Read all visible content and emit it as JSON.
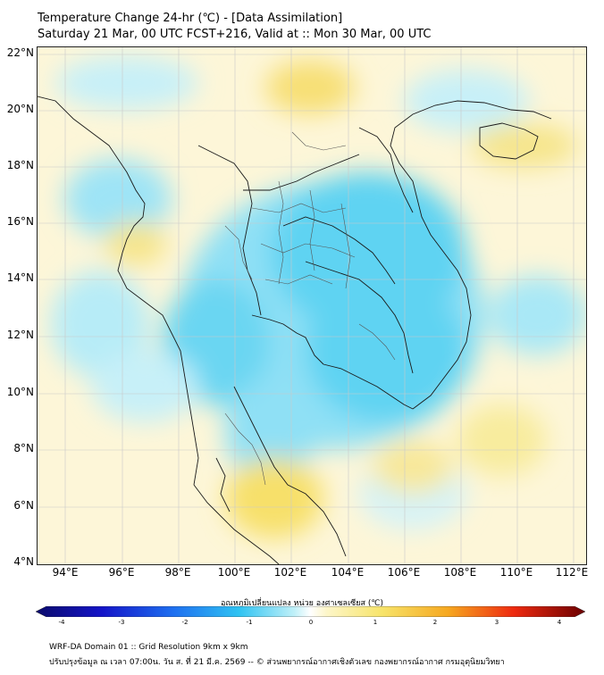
{
  "title": {
    "line1": "Temperature Change 24-hr (℃) - [Data Assimilation]",
    "line2": "Saturday 21 Mar, 00 UTC FCST+216, Valid at :: Mon 30 Mar, 00 UTC"
  },
  "axes": {
    "lat_labels": [
      "22°N",
      "20°N",
      "18°N",
      "16°N",
      "14°N",
      "12°N",
      "10°N",
      "8°N",
      "6°N",
      "4°N"
    ],
    "lon_labels": [
      "94°E",
      "96°E",
      "98°E",
      "100°E",
      "102°E",
      "104°E",
      "106°E",
      "108°E",
      "110°E",
      "112°E"
    ]
  },
  "colorbar": {
    "label": "อุณหภูมิเปลี่ยนแปลง หน่วย องศาเซลเซียส (℃)",
    "ticks": [
      "-4",
      "-3",
      "-2",
      "-1",
      "0",
      "1",
      "2",
      "3",
      "4"
    ],
    "min": -4,
    "max": 4
  },
  "footer": {
    "line1": "WRF-DA Domain 01 :: Grid Resolution 9km x 9km",
    "line2": "ปรับปรุงข้อมูล ณ เวลา 07:00น. วัน ส. ที่ 21 มี.ค. 2569 -- © ส่วนพยากรณ์อากาศเชิงตัวเลข กองพยากรณ์อากาศ กรมอุตุนิยมวิทยา"
  }
}
